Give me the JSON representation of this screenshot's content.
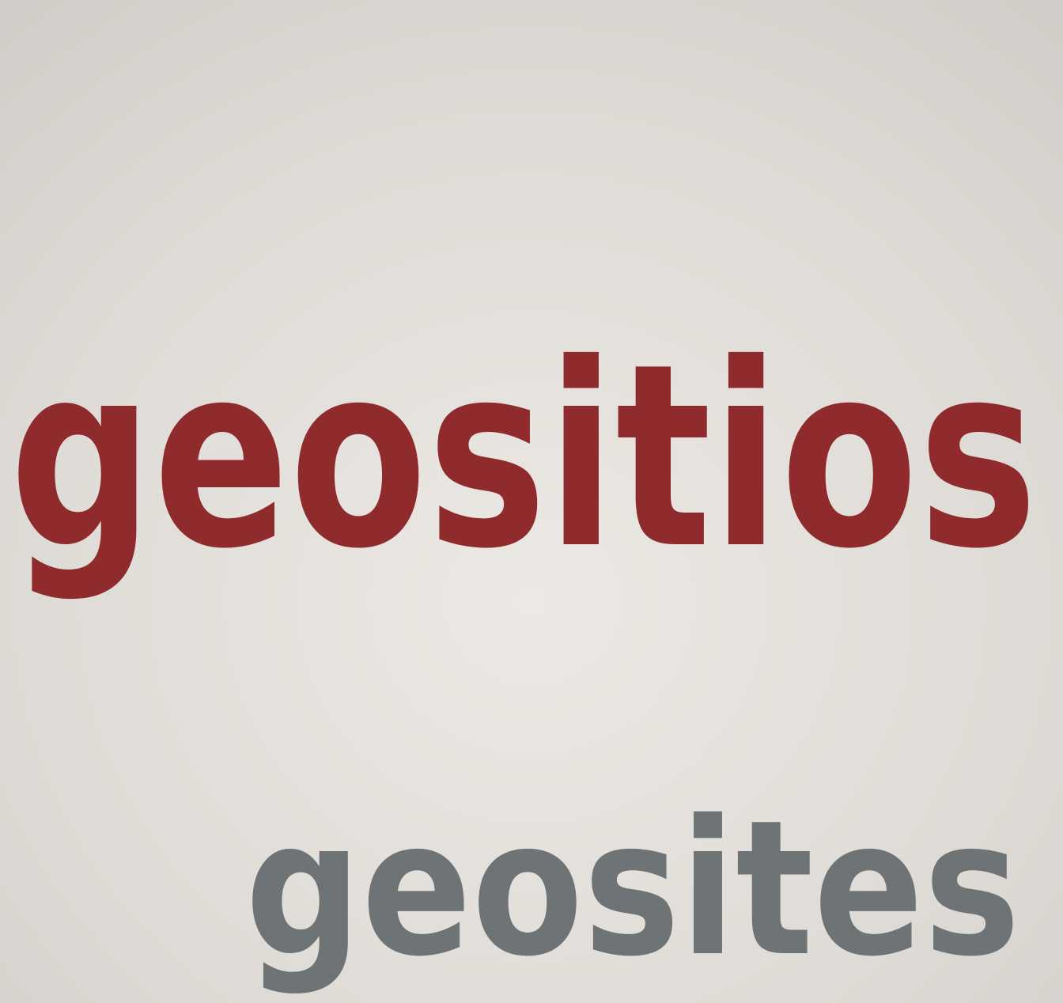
{
  "sign": {
    "primary": "geositios",
    "secondary": "geosites"
  }
}
